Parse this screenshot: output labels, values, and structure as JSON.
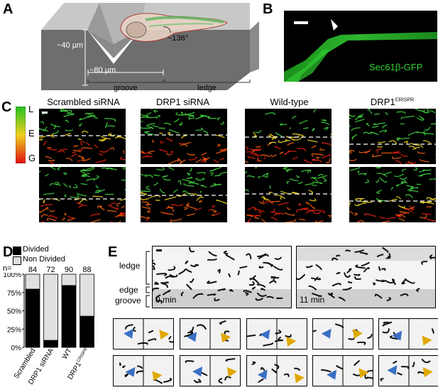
{
  "panels": {
    "a": "A",
    "b": "B",
    "c": "C",
    "d": "D",
    "e": "E"
  },
  "panel_a": {
    "height_label": "~40 µm",
    "width_label": "~80 µm",
    "angle_label": "~136°",
    "groove_label": "groove",
    "ledge_label": "ledge"
  },
  "panel_b": {
    "marker_label": "Sec61β-GFP"
  },
  "panel_c": {
    "scale": {
      "L": "L",
      "E": "E",
      "G": "G"
    },
    "columns": [
      "Scrambled siRNA",
      "DRP1 siRNA",
      "Wild-type",
      "DRP1"
    ],
    "col4_superscript": "CRISPR"
  },
  "panel_d": {
    "legend": [
      "Divided",
      "Non Divided"
    ],
    "n_label": "n=",
    "n_values": [
      "84",
      "72",
      "90",
      "88"
    ],
    "y_ticks": [
      "100%",
      "75%",
      "50%",
      "25%",
      "0%"
    ],
    "x_labels": [
      "Scrambled",
      "DRP1 siRNA",
      "WT",
      "DRP1"
    ],
    "x4_superscript": "CRISPR",
    "colors": {
      "divided": "#000000",
      "non_divided": "#e0e0e0"
    }
  },
  "panel_e": {
    "ledge_label": "ledge",
    "edge_label": "edge",
    "groove_label": "groove",
    "time1": "0 min",
    "time2": "11 min",
    "arrow_colors": {
      "blue": "#3a6fc4",
      "yellow": "#e0a800"
    }
  },
  "chart_data": {
    "type": "bar",
    "stacked": true,
    "categories": [
      "Scrambled",
      "DRP1 siRNA",
      "WT",
      "DRP1CRISPR"
    ],
    "series": [
      {
        "name": "Divided",
        "values": [
          80,
          10,
          85,
          43
        ]
      },
      {
        "name": "Non Divided",
        "values": [
          20,
          90,
          15,
          57
        ]
      }
    ],
    "n": [
      84,
      72,
      90,
      88
    ],
    "ylim": [
      0,
      100
    ],
    "y_ticks": [
      "0%",
      "25%",
      "50%",
      "75%",
      "100%"
    ],
    "legend_position": "top"
  }
}
